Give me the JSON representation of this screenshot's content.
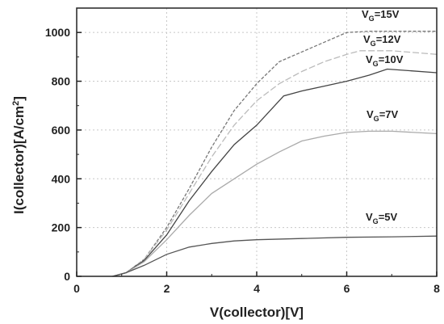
{
  "chart_data": {
    "type": "line",
    "xlabel": "V(collector)[V]",
    "ylabel": "I(collector)[A/cm",
    "ylabel_sup": "2",
    "ylabel_end": "]",
    "xlim": [
      0,
      8
    ],
    "ylim": [
      0,
      1100
    ],
    "xticks": [
      0,
      2,
      4,
      6,
      8
    ],
    "yticks": [
      0,
      200,
      400,
      600,
      800,
      1000
    ],
    "grid": true,
    "series": [
      {
        "name": "V_G=15V",
        "label_main": "V",
        "label_sub": "G",
        "label_rest": "=15V",
        "color": "#777777",
        "dash": "4,2",
        "x": [
          0.8,
          1.1,
          1.5,
          2.0,
          2.5,
          3.0,
          3.5,
          4.0,
          4.5,
          5.0,
          5.5,
          6.0,
          6.5,
          7.0,
          8.0
        ],
        "y": [
          0,
          15,
          70,
          200,
          360,
          530,
          680,
          790,
          880,
          920,
          960,
          1000,
          1005,
          1005,
          1005
        ]
      },
      {
        "name": "V_G=12V",
        "label_main": "V",
        "label_sub": "G",
        "label_rest": "=12V",
        "color": "#bbbbbb",
        "dash": "8,3",
        "x": [
          0.8,
          1.1,
          1.5,
          2.0,
          2.5,
          3.0,
          3.5,
          4.0,
          4.5,
          5.0,
          5.5,
          6.0,
          6.3,
          7.0,
          8.0
        ],
        "y": [
          0,
          15,
          70,
          190,
          340,
          490,
          620,
          720,
          790,
          840,
          880,
          910,
          925,
          925,
          910
        ]
      },
      {
        "name": "V_G=10V",
        "label_main": "V",
        "label_sub": "G",
        "label_rest": "=10V",
        "color": "#444444",
        "dash": "",
        "x": [
          0.8,
          1.1,
          1.5,
          2.0,
          2.5,
          3.0,
          3.5,
          4.0,
          4.6,
          5.0,
          5.5,
          6.0,
          6.5,
          6.9,
          8.0
        ],
        "y": [
          0,
          15,
          65,
          170,
          310,
          430,
          540,
          620,
          740,
          760,
          780,
          800,
          825,
          850,
          835
        ]
      },
      {
        "name": "V_G=7V",
        "label_main": "V",
        "label_sub": "G",
        "label_rest": "=7V",
        "color": "#aaaaaa",
        "dash": "",
        "x": [
          0.8,
          1.1,
          1.5,
          2.0,
          2.5,
          3.0,
          3.5,
          4.0,
          4.5,
          5.0,
          5.5,
          6.0,
          6.5,
          7.0,
          8.0
        ],
        "y": [
          0,
          15,
          60,
          150,
          250,
          340,
          400,
          460,
          510,
          555,
          575,
          590,
          595,
          595,
          585
        ]
      },
      {
        "name": "V_G=5V",
        "label_main": "V",
        "label_sub": "G",
        "label_rest": "=5V",
        "color": "#555555",
        "dash": "",
        "x": [
          0.8,
          1.1,
          1.5,
          2.0,
          2.5,
          3.0,
          3.5,
          4.0,
          5.0,
          6.0,
          7.0,
          8.0
        ],
        "y": [
          0,
          15,
          45,
          90,
          120,
          135,
          145,
          150,
          155,
          160,
          162,
          165
        ]
      }
    ]
  }
}
